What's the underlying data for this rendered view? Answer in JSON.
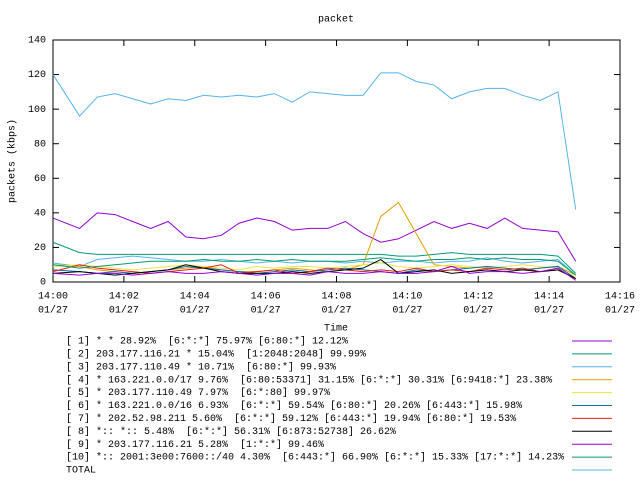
{
  "chart_data": {
    "type": "line",
    "title": "packet",
    "x_label": "Time",
    "y_label": "packets (kbps)",
    "x": [
      0,
      0.75,
      1.25,
      1.75,
      2.25,
      2.75,
      3.25,
      3.75,
      4.25,
      4.75,
      5.25,
      5.75,
      6.25,
      6.75,
      7.25,
      7.75,
      8.25,
      8.75,
      9.25,
      9.75,
      10.25,
      10.75,
      11.25,
      11.75,
      12.25,
      12.75,
      13.25,
      13.75,
      14.25,
      14.75
    ],
    "xlim": [
      0,
      16
    ],
    "xticks": [
      {
        "value": 0,
        "label": [
          "14:00",
          "01/27"
        ]
      },
      {
        "value": 2,
        "label": [
          "14:02",
          "01/27"
        ]
      },
      {
        "value": 4,
        "label": [
          "14:04",
          "01/27"
        ]
      },
      {
        "value": 6,
        "label": [
          "14:06",
          "01/27"
        ]
      },
      {
        "value": 8,
        "label": [
          "14:08",
          "01/27"
        ]
      },
      {
        "value": 10,
        "label": [
          "14:10",
          "01/27"
        ]
      },
      {
        "value": 12,
        "label": [
          "14:12",
          "01/27"
        ]
      },
      {
        "value": 14,
        "label": [
          "14:14",
          "01/27"
        ]
      },
      {
        "value": 16,
        "label": [
          "14:16",
          "01/27"
        ]
      }
    ],
    "ylim": [
      0,
      140
    ],
    "yticks": [
      0,
      20,
      40,
      60,
      80,
      100,
      120,
      140
    ],
    "grid": false,
    "series": [
      {
        "name": "[ 1] * * 28.92%  [6:*:*] 75.97% [6:80:*] 12.12%",
        "color": "#9400d3",
        "values": [
          37,
          31,
          40,
          39,
          35,
          31,
          35,
          26,
          25,
          27,
          34,
          37,
          35,
          30,
          31,
          31,
          35,
          28,
          23,
          25,
          30,
          35,
          31,
          34,
          31,
          37,
          31,
          30,
          29,
          12
        ]
      },
      {
        "name": "[ 2] 203.177.116.21 * 15.04%  [1:2048:2048] 99.99%",
        "color": "#009e73",
        "values": [
          23,
          17,
          16,
          16,
          16,
          16,
          16,
          16,
          16,
          16,
          16,
          16,
          16,
          16,
          16,
          16,
          16,
          16,
          16,
          15,
          15,
          16,
          17,
          16,
          16,
          16,
          16,
          16,
          15,
          5
        ]
      },
      {
        "name": "[ 3] 203.177.110.49 * 10.71%  [6:80:*] 99.93%",
        "color": "#56b4e9",
        "values": [
          11,
          9,
          13,
          14,
          15,
          14,
          13,
          12,
          12,
          13,
          12,
          11,
          12,
          11,
          12,
          12,
          11,
          12,
          11,
          12,
          12,
          11,
          12,
          12,
          14,
          12,
          11,
          12,
          13,
          4
        ]
      },
      {
        "name": "[ 4] * 163.221.0.0/17 9.76%  [6:80:53371] 31.15% [6:*:*] 30.31% [6:9418:*] 23.38%",
        "color": "#e69f00",
        "values": [
          10,
          9,
          7,
          6,
          5,
          6,
          7,
          8,
          9,
          7,
          6,
          6,
          7,
          8,
          7,
          6,
          7,
          10,
          38,
          46,
          28,
          10,
          9,
          8,
          9,
          8,
          7,
          8,
          9,
          4
        ]
      },
      {
        "name": "[ 5] * 203.177.110.49 7.97%  [6:*:80] 99.97%",
        "color": "#f0e442",
        "values": [
          9,
          10,
          9,
          8,
          7,
          8,
          9,
          10,
          9,
          8,
          7,
          9,
          8,
          9,
          9,
          8,
          9,
          10,
          11,
          9,
          8,
          9,
          10,
          9,
          8,
          9,
          10,
          9,
          8,
          3
        ]
      },
      {
        "name": "[ 6] * 163.221.0.0/16 6.93%  [6:*:*] 59.54% [6:80:*] 20.26% [6:443:*] 15.98%",
        "color": "#0072b2",
        "values": [
          7,
          6,
          5,
          6,
          5,
          6,
          7,
          9,
          8,
          7,
          6,
          5,
          6,
          7,
          6,
          7,
          8,
          7,
          6,
          5,
          7,
          6,
          7,
          8,
          9,
          8,
          7,
          8,
          9,
          2
        ]
      },
      {
        "name": "[ 7] * 202.52.98.211 5.60%  [6:*:*] 59.12% [6:443:*] 19.94% [6:80:*] 19.53%",
        "color": "#e51e10",
        "values": [
          6,
          10,
          8,
          7,
          6,
          5,
          6,
          7,
          8,
          10,
          5,
          6,
          7,
          5,
          6,
          8,
          7,
          6,
          7,
          6,
          8,
          6,
          7,
          6,
          8,
          7,
          8,
          6,
          7,
          2
        ]
      },
      {
        "name": "[ 8] *:: *:: 5.48%  [6:*:*] 56.31% [6:873:52738] 26.62%",
        "color": "#000000",
        "values": [
          5,
          6,
          5,
          4,
          5,
          6,
          7,
          10,
          8,
          6,
          5,
          5,
          5,
          6,
          5,
          6,
          7,
          8,
          13,
          5,
          6,
          7,
          5,
          6,
          7,
          6,
          7,
          6,
          7,
          2
        ]
      },
      {
        "name": "[ 9] * 203.177.116.21 5.28%  [1:*:*] 99.46%",
        "color": "#9400d3",
        "values": [
          5,
          4,
          5,
          5,
          4,
          5,
          6,
          5,
          5,
          6,
          5,
          4,
          5,
          5,
          4,
          6,
          5,
          5,
          6,
          5,
          5,
          6,
          9,
          5,
          6,
          6,
          5,
          6,
          8,
          1
        ]
      },
      {
        "name": "[10] *:: 2001:3e00:7600::/40 4.30%  [6:443:*] 66.90% [6:*:*] 15.33% [17:*:*] 14.23%",
        "color": "#009e73",
        "values": [
          10,
          8,
          9,
          10,
          11,
          12,
          12,
          12,
          13,
          12,
          12,
          13,
          12,
          13,
          12,
          12,
          12,
          13,
          14,
          13,
          12,
          13,
          13,
          14,
          13,
          14,
          13,
          13,
          12,
          4
        ]
      },
      {
        "name": "TOTAL",
        "color": "#56b4e9",
        "values": [
          120,
          96,
          107,
          109,
          106,
          103,
          106,
          105,
          108,
          107,
          108,
          107,
          109,
          104,
          110,
          109,
          108,
          108,
          121,
          121,
          116,
          114,
          106,
          110,
          112,
          112,
          108,
          105,
          110,
          42
        ]
      }
    ]
  }
}
